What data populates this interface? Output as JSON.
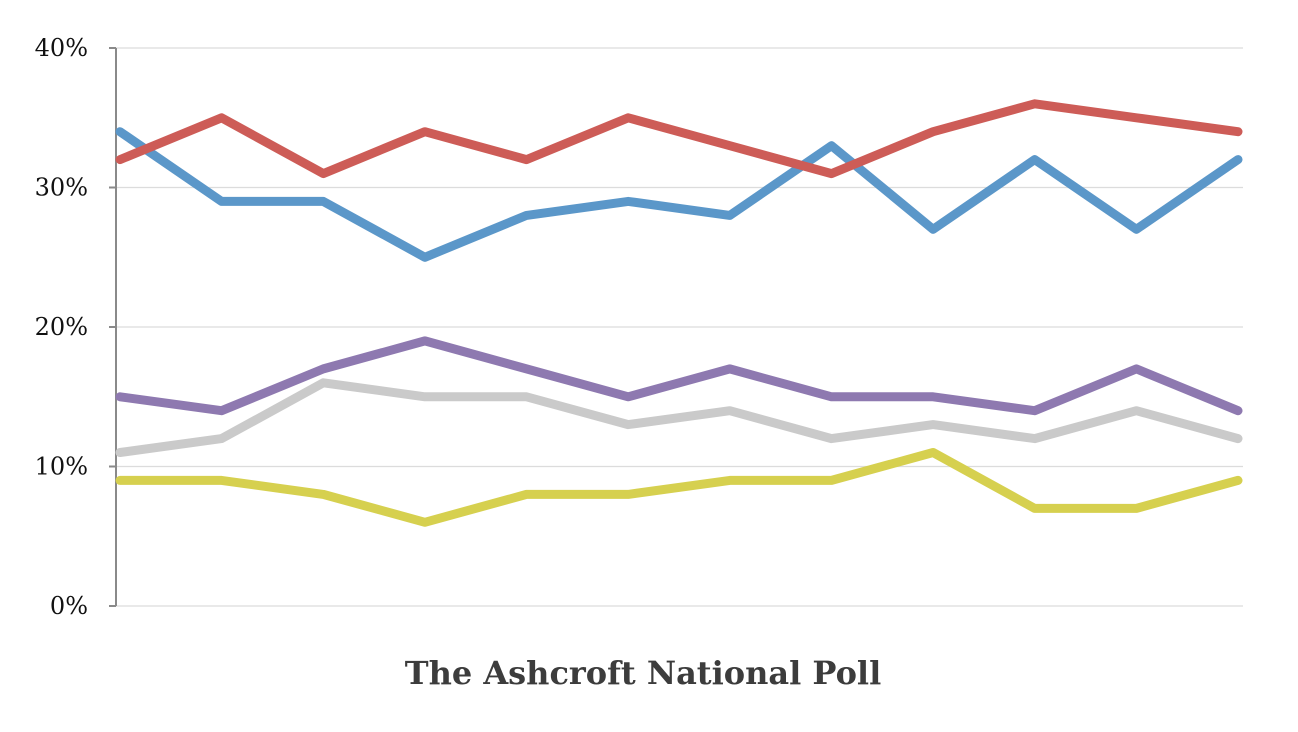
{
  "chart_data": {
    "type": "line",
    "title": "The Ashcroft National Poll",
    "xlabel": "",
    "ylabel": "",
    "ylim": [
      0,
      40
    ],
    "yticks": [
      {
        "value": 0,
        "label": "0%"
      },
      {
        "value": 10,
        "label": "10%"
      },
      {
        "value": 20,
        "label": "20%"
      },
      {
        "value": 30,
        "label": "30%"
      },
      {
        "value": 40,
        "label": "40%"
      }
    ],
    "grid": true,
    "x": [
      1,
      2,
      3,
      4,
      5,
      6,
      7,
      8,
      9,
      10,
      11,
      12
    ],
    "series": [
      {
        "color": "#cd5c57",
        "values": [
          32,
          35,
          31,
          34,
          32,
          35,
          33,
          31,
          34,
          36,
          35,
          34
        ]
      },
      {
        "color": "#5b97c9",
        "values": [
          34,
          29,
          29,
          25,
          28,
          29,
          28,
          33,
          27,
          32,
          27,
          32
        ]
      },
      {
        "color": "#8e79b0",
        "values": [
          15,
          14,
          17,
          19,
          17,
          15,
          17,
          15,
          15,
          14,
          17,
          14
        ]
      },
      {
        "color": "#cacaca",
        "values": [
          11,
          12,
          16,
          15,
          15,
          13,
          14,
          12,
          13,
          12,
          14,
          12
        ]
      },
      {
        "color": "#d6d04f",
        "values": [
          9,
          9,
          8,
          6,
          8,
          8,
          9,
          9,
          11,
          7,
          7,
          9
        ]
      }
    ]
  }
}
